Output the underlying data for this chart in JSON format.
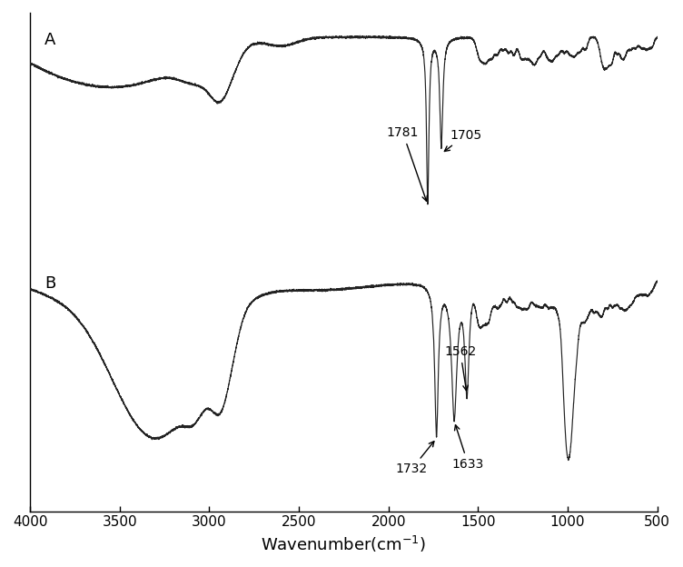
{
  "background_color": "#ffffff",
  "line_color": "#222222",
  "label_A": "A",
  "label_B": "B",
  "xticks": [
    4000,
    3500,
    3000,
    2500,
    2000,
    1500,
    1000,
    500
  ],
  "xlabel": "Wavenumber(cm$^{-1}$)"
}
